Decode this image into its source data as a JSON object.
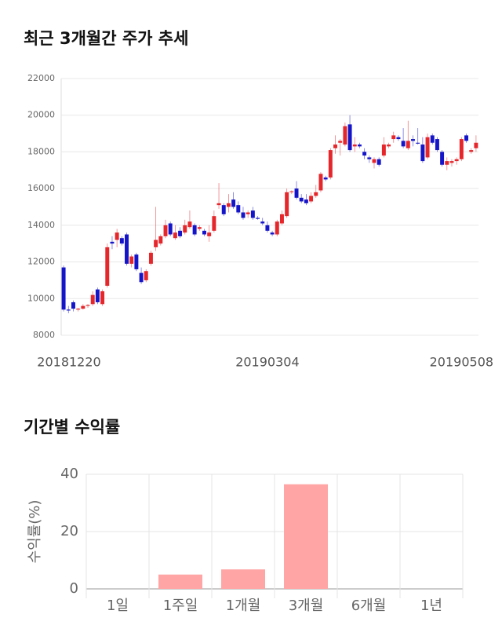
{
  "chart_data": [
    {
      "type": "candlestick",
      "title": "최근 3개월간 주가 추세",
      "categories": [
        "20181220",
        null,
        null,
        null,
        null,
        null,
        null,
        null,
        null,
        null,
        null,
        null,
        null,
        null,
        null,
        null,
        null,
        null,
        null,
        null,
        null,
        null,
        null,
        null,
        null,
        null,
        null,
        null,
        null,
        null,
        null,
        null,
        null,
        null,
        null,
        null,
        null,
        null,
        null,
        null,
        null,
        null,
        "20190304",
        null,
        null,
        null,
        null,
        null,
        null,
        null,
        null,
        null,
        null,
        null,
        null,
        null,
        null,
        null,
        null,
        null,
        null,
        null,
        null,
        null,
        null,
        null,
        null,
        null,
        null,
        null,
        null,
        null,
        null,
        null,
        null,
        null,
        null,
        null,
        null,
        null,
        null,
        null,
        "20190508",
        null,
        null,
        null
      ],
      "values": [
        [
          11700,
          11800,
          9300,
          9400
        ],
        [
          9400,
          9600,
          9200,
          9350
        ],
        [
          9800,
          9900,
          9300,
          9450
        ],
        [
          9400,
          9500,
          9300,
          9450
        ],
        [
          9450,
          9700,
          9400,
          9600
        ],
        [
          9600,
          9700,
          9500,
          9650
        ],
        [
          9700,
          10400,
          9600,
          10200
        ],
        [
          10500,
          10600,
          9700,
          9800
        ],
        [
          9700,
          10500,
          9600,
          10400
        ],
        [
          10700,
          13000,
          10600,
          12800
        ],
        [
          13100,
          13400,
          12700,
          13000
        ],
        [
          13200,
          13800,
          12800,
          13600
        ],
        [
          13300,
          13400,
          12900,
          13000
        ],
        [
          13500,
          13600,
          11800,
          11900
        ],
        [
          11900,
          12400,
          11700,
          12300
        ],
        [
          12400,
          12500,
          11500,
          11600
        ],
        [
          11400,
          11700,
          10800,
          10900
        ],
        [
          11000,
          11600,
          10900,
          11500
        ],
        [
          11900,
          12600,
          11800,
          12500
        ],
        [
          12800,
          15000,
          12600,
          13200
        ],
        [
          13000,
          13500,
          12900,
          13400
        ],
        [
          13400,
          14300,
          13300,
          14000
        ],
        [
          14100,
          14200,
          13400,
          13500
        ],
        [
          13300,
          14000,
          13200,
          13600
        ],
        [
          13700,
          13900,
          13300,
          13400
        ],
        [
          13600,
          14300,
          13500,
          14000
        ],
        [
          13900,
          14800,
          13800,
          14200
        ],
        [
          14000,
          14100,
          13400,
          13500
        ],
        [
          13800,
          14000,
          13700,
          13900
        ],
        [
          13700,
          13800,
          13400,
          13500
        ],
        [
          13400,
          14000,
          13100,
          13600
        ],
        [
          13700,
          14800,
          13600,
          14500
        ],
        [
          15100,
          16300,
          14900,
          15200
        ],
        [
          15100,
          15200,
          14500,
          14600
        ],
        [
          15000,
          15700,
          14700,
          15200
        ],
        [
          15400,
          15800,
          14900,
          15000
        ],
        [
          15100,
          15300,
          14600,
          14700
        ],
        [
          14700,
          15000,
          14300,
          14400
        ],
        [
          14600,
          14800,
          14400,
          14700
        ],
        [
          14800,
          15000,
          14300,
          14400
        ],
        [
          14400,
          14500,
          14300,
          14350
        ],
        [
          14200,
          14400,
          14000,
          14100
        ],
        [
          14000,
          14200,
          13600,
          13700
        ],
        [
          13600,
          13700,
          13400,
          13500
        ],
        [
          13500,
          14300,
          13400,
          14200
        ],
        [
          14100,
          14800,
          14000,
          14600
        ],
        [
          14500,
          16000,
          14400,
          15800
        ],
        [
          15800,
          15900,
          15700,
          15850
        ],
        [
          16000,
          16400,
          15400,
          15500
        ],
        [
          15500,
          15700,
          15200,
          15300
        ],
        [
          15400,
          15700,
          15100,
          15200
        ],
        [
          15300,
          15800,
          15200,
          15600
        ],
        [
          15600,
          16200,
          15500,
          15800
        ],
        [
          15900,
          16900,
          15800,
          16800
        ],
        [
          16600,
          16700,
          16400,
          16500
        ],
        [
          16600,
          18200,
          16500,
          18100
        ],
        [
          18200,
          18900,
          17900,
          18400
        ],
        [
          18500,
          18700,
          17800,
          18600
        ],
        [
          18400,
          19600,
          18300,
          19400
        ],
        [
          19500,
          20000,
          18000,
          18100
        ],
        [
          18300,
          18800,
          18000,
          18400
        ],
        [
          18400,
          18500,
          18200,
          18300
        ],
        [
          18000,
          18200,
          17600,
          17800
        ],
        [
          17700,
          17800,
          17400,
          17600
        ],
        [
          17400,
          17700,
          17100,
          17600
        ],
        [
          17600,
          17700,
          17200,
          17300
        ],
        [
          17800,
          18800,
          17700,
          18400
        ],
        [
          18300,
          18500,
          18200,
          18400
        ],
        [
          18700,
          19100,
          18500,
          18900
        ],
        [
          18800,
          18900,
          18600,
          18700
        ],
        [
          18600,
          19300,
          18200,
          18300
        ],
        [
          18200,
          19700,
          18100,
          18600
        ],
        [
          18700,
          18900,
          18300,
          18600
        ],
        [
          18500,
          19300,
          18400,
          18450
        ],
        [
          18400,
          18800,
          17400,
          17500
        ],
        [
          17700,
          19000,
          17600,
          18800
        ],
        [
          18900,
          19000,
          18400,
          18500
        ],
        [
          18700,
          18800,
          18000,
          18100
        ],
        [
          18000,
          18100,
          17200,
          17300
        ],
        [
          17300,
          17700,
          17000,
          17500
        ],
        [
          17400,
          17600,
          17200,
          17500
        ],
        [
          17500,
          17700,
          17300,
          17600
        ],
        [
          17600,
          18800,
          17500,
          18700
        ],
        [
          18900,
          19000,
          18500,
          18600
        ],
        [
          18000,
          18200,
          17900,
          18100
        ],
        [
          18200,
          18900,
          18000,
          18500
        ]
      ],
      "up_color": "#e5262b",
      "down_color": "#1414c8",
      "ylim": [
        8000,
        22000
      ],
      "yticks": [
        8000,
        10000,
        12000,
        14000,
        16000,
        18000,
        20000,
        22000
      ],
      "grid": true
    },
    {
      "type": "bar",
      "title": "기간별 수익률",
      "ylabel": "수익률(%)",
      "categories": [
        "1일",
        "1주일",
        "1개월",
        "3개월",
        "6개월",
        "1년"
      ],
      "values": [
        null,
        5,
        6.8,
        36.5,
        null,
        null
      ],
      "color": "#ffa5a5",
      "ylim": [
        0,
        40
      ],
      "yticks": [
        0,
        20,
        40
      ],
      "grid": true
    }
  ]
}
